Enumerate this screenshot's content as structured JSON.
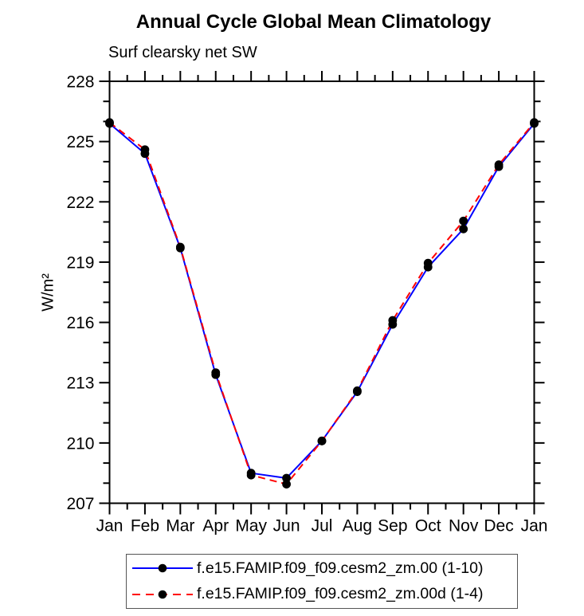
{
  "chart_data": {
    "type": "line",
    "title": "Annual Cycle Global Mean Climatology",
    "subtitle": "Surf clearsky net SW",
    "ylabel": "W/m²",
    "xlabel": "",
    "x": [
      "Jan",
      "Feb",
      "Mar",
      "Apr",
      "May",
      "Jun",
      "Jul",
      "Aug",
      "Sep",
      "Oct",
      "Nov",
      "Dec",
      "Jan"
    ],
    "ylim": [
      207,
      228
    ],
    "yticks": [
      207,
      210,
      213,
      216,
      219,
      222,
      225,
      228
    ],
    "ytick_minor_step": 1,
    "xtick_minor_step": 0.5,
    "grid": false,
    "legend_position": "bottom",
    "axis_color": "#000000",
    "marker_color": "#000000",
    "marker_shape": "filled-circle",
    "series": [
      {
        "name": "f.e15.FAMIP.f09_f09.cesm2_zm.00 (1-10)",
        "color": "#0000ff",
        "line_style": "solid",
        "values": [
          225.9,
          224.4,
          219.7,
          213.4,
          208.5,
          208.25,
          210.1,
          212.55,
          215.9,
          218.75,
          220.65,
          223.75,
          225.9
        ]
      },
      {
        "name": "f.e15.FAMIP.f09_f09.cesm2_zm.00d (1-4)",
        "color": "#ff0000",
        "line_style": "dashed",
        "values": [
          225.95,
          224.6,
          219.75,
          213.5,
          208.4,
          207.95,
          210.1,
          212.6,
          216.1,
          218.95,
          221.05,
          223.85,
          225.95
        ]
      }
    ]
  },
  "legend": {
    "border_color": "#555555"
  }
}
